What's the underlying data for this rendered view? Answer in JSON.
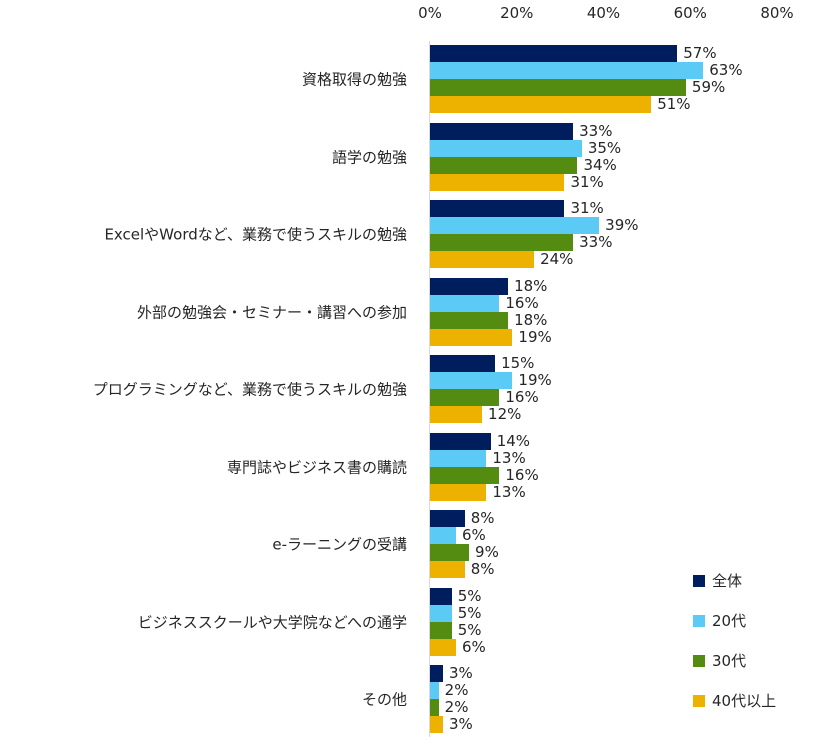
{
  "chart_data": {
    "type": "bar",
    "orientation": "horizontal",
    "title": "",
    "xlabel": "",
    "ylabel": "",
    "xlim": [
      0,
      80
    ],
    "x_ticks": [
      "0%",
      "20%",
      "40%",
      "60%",
      "80%"
    ],
    "x_axis_position": "top",
    "grid": false,
    "legend_position": "right-bottom",
    "categories": [
      "資格取得の勉強",
      "語学の勉強",
      "ExcelやWordなど、業務で使うスキルの勉強",
      "外部の勉強会・セミナー・講習への参加",
      "プログラミングなど、業務で使うスキルの勉強",
      "専門誌やビジネス書の購読",
      "e-ラーニングの受講",
      "ビジネススクールや大学院などへの通学",
      "その他"
    ],
    "series": [
      {
        "name": "全体",
        "color": "#001D5E",
        "values": [
          57,
          33,
          31,
          18,
          15,
          14,
          8,
          5,
          3
        ]
      },
      {
        "name": "20代",
        "color": "#5BCBF5",
        "values": [
          63,
          35,
          39,
          16,
          19,
          13,
          6,
          5,
          2
        ]
      },
      {
        "name": "30代",
        "color": "#548C12",
        "values": [
          59,
          34,
          33,
          18,
          16,
          16,
          9,
          5,
          2
        ]
      },
      {
        "name": "40代以上",
        "color": "#EDB200",
        "values": [
          51,
          31,
          24,
          19,
          12,
          13,
          8,
          6,
          3
        ]
      }
    ],
    "value_suffix": "%"
  },
  "legend": {
    "items": [
      {
        "label": "全体",
        "color": "#001D5E"
      },
      {
        "label": "20代",
        "color": "#5BCBF5"
      },
      {
        "label": "30代",
        "color": "#548C12"
      },
      {
        "label": "40代以上",
        "color": "#EDB200"
      }
    ]
  }
}
